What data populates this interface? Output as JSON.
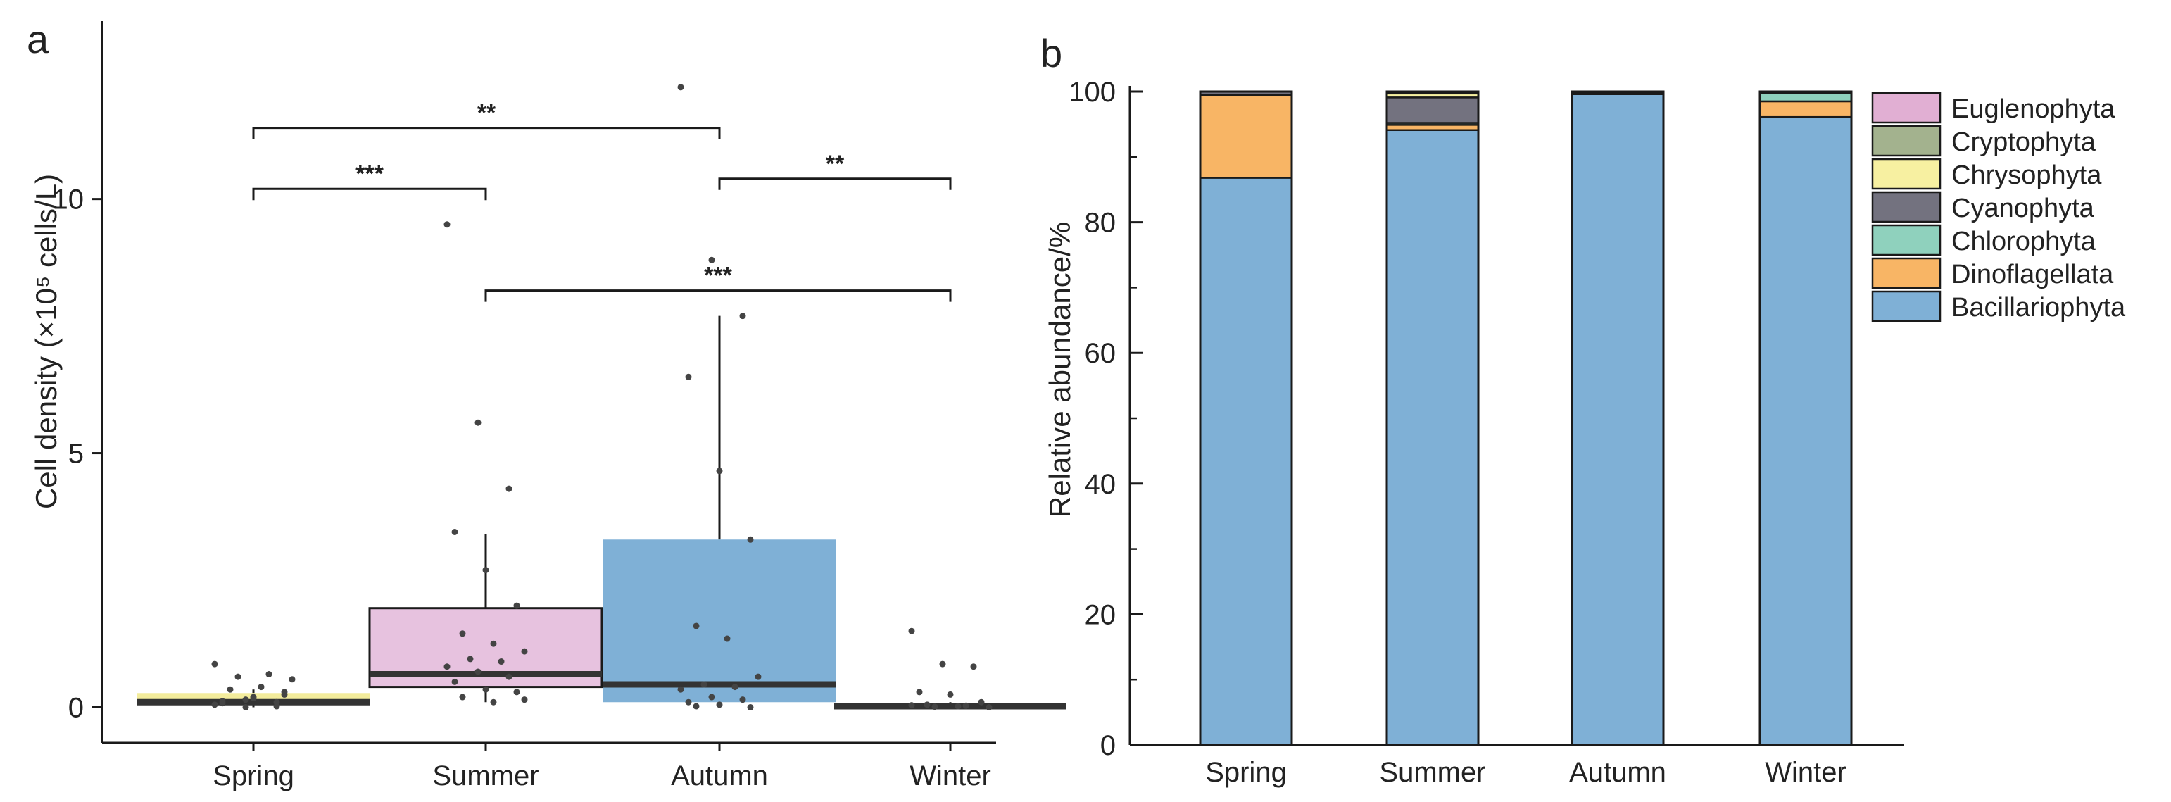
{
  "figure": {
    "panel_a_label": "a",
    "panel_b_label": "b"
  },
  "chart_data": [
    {
      "type": "box",
      "panel": "a",
      "title": "",
      "xlabel": "",
      "ylabel": "Cell density (×10⁵ cells/L)",
      "ylim": [
        -0.7,
        13.5
      ],
      "yticks": [
        0,
        5,
        10
      ],
      "ytick_labels": [
        "0",
        "5",
        "10"
      ],
      "categories": [
        "Spring",
        "Summer",
        "Autumn",
        "Winter"
      ],
      "colors": [
        "#f3ec9c",
        "#e7c2df",
        "#7fb0d6",
        "#7fb0d6"
      ],
      "boxes": [
        {
          "category": "Spring",
          "q1": 0.05,
          "median": 0.1,
          "q3": 0.28,
          "whisker_low": 0.0,
          "whisker_high": 0.35
        },
        {
          "category": "Summer",
          "q1": 0.4,
          "median": 0.65,
          "q3": 1.95,
          "whisker_low": 0.1,
          "whisker_high": 3.4
        },
        {
          "category": "Autumn",
          "q1": 0.1,
          "median": 0.45,
          "q3": 3.3,
          "whisker_low": 0.0,
          "whisker_high": 7.7
        },
        {
          "category": "Winter",
          "q1": 0.0,
          "median": 0.02,
          "q3": 0.05,
          "whisker_low": 0.0,
          "whisker_high": 0.1
        }
      ],
      "points": [
        {
          "category": "Spring",
          "values": [
            0.05,
            0.0,
            0.1,
            0.12,
            0.2,
            0.3,
            0.35,
            0.4,
            0.55,
            0.6,
            0.65,
            0.85,
            0.15,
            0.02,
            0.08,
            0.18,
            0.25
          ]
        },
        {
          "category": "Summer",
          "values": [
            9.5,
            5.6,
            4.3,
            3.45,
            2.7,
            2.0,
            1.45,
            1.25,
            1.1,
            0.95,
            0.9,
            0.8,
            0.7,
            0.6,
            0.5,
            0.35,
            0.3,
            0.2,
            0.1,
            0.15
          ]
        },
        {
          "category": "Autumn",
          "values": [
            12.2,
            8.8,
            7.7,
            6.5,
            4.65,
            3.3,
            1.6,
            1.35,
            0.6,
            0.45,
            0.4,
            0.35,
            0.2,
            0.15,
            0.1,
            0.05,
            0.0,
            0.02
          ]
        },
        {
          "category": "Winter",
          "values": [
            1.5,
            0.85,
            0.8,
            0.3,
            0.25,
            0.1,
            0.05,
            0.02,
            0.0,
            0.01,
            0.03,
            0.04
          ]
        }
      ],
      "comparisons": [
        {
          "from": "Spring",
          "to": "Autumn",
          "label": "**",
          "y": 11.4
        },
        {
          "from": "Spring",
          "to": "Summer",
          "label": "***",
          "y": 10.2
        },
        {
          "from": "Autumn",
          "to": "Winter",
          "label": "**",
          "y": 10.4
        },
        {
          "from": "Summer",
          "to": "Winter",
          "label": "***",
          "y": 8.2
        }
      ]
    },
    {
      "type": "stacked-bar",
      "panel": "b",
      "title": "",
      "xlabel": "",
      "ylabel": "Relative abundance/%",
      "ylim": [
        0,
        100
      ],
      "yticks": [
        0,
        20,
        40,
        60,
        80,
        100
      ],
      "ytick_labels": [
        "0",
        "20",
        "40",
        "60",
        "80",
        "100"
      ],
      "categories": [
        "Spring",
        "Summer",
        "Autumn",
        "Winter"
      ],
      "legend_position": "top-right",
      "legend_order": [
        "Euglenophyta",
        "Cryptophyta",
        "Chrysophyta",
        "Cyanophyta",
        "Chlorophyta",
        "Dinoflagellata",
        "Bacillariophyta"
      ],
      "series": [
        {
          "name": "Bacillariophyta",
          "color": "#7fb0d6",
          "values": [
            86.8,
            94.1,
            99.6,
            96.1
          ]
        },
        {
          "name": "Dinoflagellata",
          "color": "#f8b565",
          "values": [
            12.6,
            0.8,
            0.1,
            2.4
          ]
        },
        {
          "name": "Chlorophyta",
          "color": "#8fd1bd",
          "values": [
            0.1,
            0.3,
            0.1,
            1.3
          ]
        },
        {
          "name": "Cyanophyta",
          "color": "#73727f",
          "values": [
            0.5,
            3.9,
            0.2,
            0.1
          ]
        },
        {
          "name": "Chrysophyta",
          "color": "#f7f0a1",
          "values": [
            0.0,
            0.6,
            0.0,
            0.1
          ]
        },
        {
          "name": "Cryptophyta",
          "color": "#a3b28e",
          "values": [
            0.0,
            0.2,
            0.0,
            0.0
          ]
        },
        {
          "name": "Euglenophyta",
          "color": "#e1afd3",
          "values": [
            0.0,
            0.1,
            0.0,
            0.0
          ]
        }
      ]
    }
  ]
}
